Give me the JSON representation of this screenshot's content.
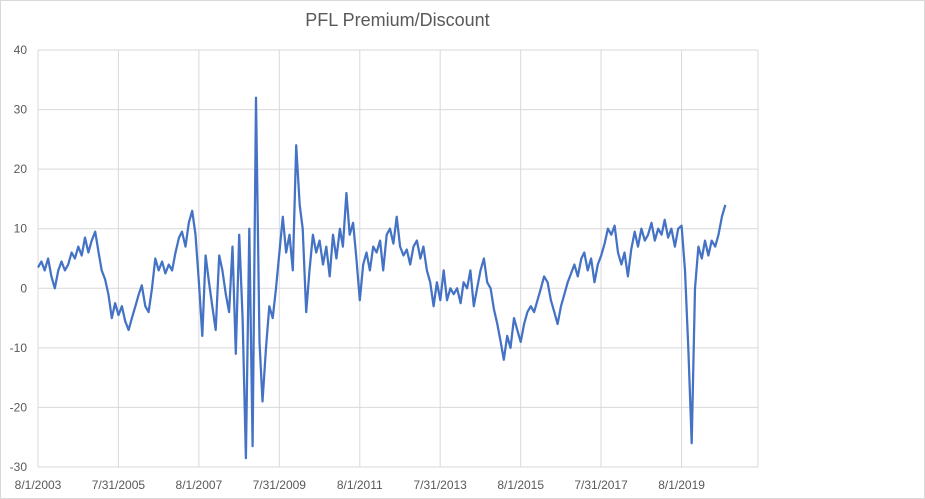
{
  "chart_data": {
    "type": "line",
    "title": "PFL Premium/Discount",
    "xlabel": "",
    "ylabel": "",
    "ylim": [
      -30,
      40
    ],
    "y_ticks": [
      40,
      30,
      20,
      10,
      0,
      -10,
      -20,
      -30
    ],
    "x_ticks": [
      "8/1/2003",
      "7/31/2005",
      "8/1/2007",
      "7/31/2009",
      "8/1/2011",
      "7/31/2013",
      "8/1/2015",
      "7/31/2017",
      "8/1/2019"
    ],
    "grid": true,
    "legend": "none",
    "series": [
      {
        "color": "#4472c4",
        "points": [
          [
            "2003-08-01",
            3.5
          ],
          [
            "2003-09-01",
            4.5
          ],
          [
            "2003-10-01",
            3.0
          ],
          [
            "2003-11-01",
            5.0
          ],
          [
            "2003-12-01",
            2.0
          ],
          [
            "2004-01-01",
            0.0
          ],
          [
            "2004-02-01",
            3.0
          ],
          [
            "2004-03-01",
            4.5
          ],
          [
            "2004-04-01",
            3.0
          ],
          [
            "2004-05-01",
            4.0
          ],
          [
            "2004-06-01",
            6.0
          ],
          [
            "2004-07-01",
            5.0
          ],
          [
            "2004-08-01",
            7.0
          ],
          [
            "2004-09-01",
            5.5
          ],
          [
            "2004-10-01",
            8.5
          ],
          [
            "2004-11-01",
            6.0
          ],
          [
            "2004-12-01",
            8.0
          ],
          [
            "2005-01-01",
            9.5
          ],
          [
            "2005-02-01",
            6.0
          ],
          [
            "2005-03-01",
            3.0
          ],
          [
            "2005-04-01",
            1.5
          ],
          [
            "2005-05-01",
            -1.0
          ],
          [
            "2005-06-01",
            -5.0
          ],
          [
            "2005-07-01",
            -2.5
          ],
          [
            "2005-08-01",
            -4.5
          ],
          [
            "2005-09-01",
            -3.0
          ],
          [
            "2005-10-01",
            -5.5
          ],
          [
            "2005-11-01",
            -7.0
          ],
          [
            "2005-12-01",
            -5.0
          ],
          [
            "2006-01-01",
            -3.0
          ],
          [
            "2006-02-01",
            -1.0
          ],
          [
            "2006-03-01",
            0.5
          ],
          [
            "2006-04-01",
            -3.0
          ],
          [
            "2006-05-01",
            -4.0
          ],
          [
            "2006-06-01",
            0.0
          ],
          [
            "2006-07-01",
            5.0
          ],
          [
            "2006-08-01",
            3.0
          ],
          [
            "2006-09-01",
            4.5
          ],
          [
            "2006-10-01",
            2.5
          ],
          [
            "2006-11-01",
            4.0
          ],
          [
            "2006-12-01",
            3.0
          ],
          [
            "2007-01-01",
            6.0
          ],
          [
            "2007-02-01",
            8.5
          ],
          [
            "2007-03-01",
            9.5
          ],
          [
            "2007-04-01",
            7.0
          ],
          [
            "2007-05-01",
            11.0
          ],
          [
            "2007-06-01",
            13.0
          ],
          [
            "2007-07-01",
            9.0
          ],
          [
            "2007-08-01",
            1.0
          ],
          [
            "2007-09-01",
            -8.0
          ],
          [
            "2007-10-01",
            5.5
          ],
          [
            "2007-11-01",
            1.0
          ],
          [
            "2007-12-01",
            -3.0
          ],
          [
            "2008-01-01",
            -7.0
          ],
          [
            "2008-02-01",
            5.5
          ],
          [
            "2008-03-01",
            3.0
          ],
          [
            "2008-04-01",
            -1.0
          ],
          [
            "2008-05-01",
            -4.0
          ],
          [
            "2008-06-01",
            7.0
          ],
          [
            "2008-07-01",
            -11.0
          ],
          [
            "2008-08-01",
            9.0
          ],
          [
            "2008-09-01",
            -5.0
          ],
          [
            "2008-10-01",
            -28.5
          ],
          [
            "2008-11-01",
            10.0
          ],
          [
            "2008-12-01",
            -26.5
          ],
          [
            "2009-01-01",
            32.0
          ],
          [
            "2009-02-01",
            -9.0
          ],
          [
            "2009-03-01",
            -19.0
          ],
          [
            "2009-04-01",
            -10.0
          ],
          [
            "2009-05-01",
            -3.0
          ],
          [
            "2009-06-01",
            -5.0
          ],
          [
            "2009-07-01",
            0.0
          ],
          [
            "2009-08-01",
            6.0
          ],
          [
            "2009-09-01",
            12.0
          ],
          [
            "2009-10-01",
            6.0
          ],
          [
            "2009-11-01",
            9.0
          ],
          [
            "2009-12-01",
            3.0
          ],
          [
            "2010-01-01",
            24.0
          ],
          [
            "2010-02-01",
            14.0
          ],
          [
            "2010-03-01",
            10.0
          ],
          [
            "2010-04-01",
            -4.0
          ],
          [
            "2010-05-01",
            3.0
          ],
          [
            "2010-06-01",
            9.0
          ],
          [
            "2010-07-01",
            6.0
          ],
          [
            "2010-08-01",
            8.0
          ],
          [
            "2010-09-01",
            4.0
          ],
          [
            "2010-10-01",
            7.0
          ],
          [
            "2010-11-01",
            2.0
          ],
          [
            "2010-12-01",
            9.0
          ],
          [
            "2011-01-01",
            5.0
          ],
          [
            "2011-02-01",
            10.0
          ],
          [
            "2011-03-01",
            7.0
          ],
          [
            "2011-04-01",
            16.0
          ],
          [
            "2011-05-01",
            9.0
          ],
          [
            "2011-06-01",
            11.0
          ],
          [
            "2011-07-01",
            5.0
          ],
          [
            "2011-08-01",
            -2.0
          ],
          [
            "2011-09-01",
            4.0
          ],
          [
            "2011-10-01",
            6.0
          ],
          [
            "2011-11-01",
            3.0
          ],
          [
            "2011-12-01",
            7.0
          ],
          [
            "2012-01-01",
            6.0
          ],
          [
            "2012-02-01",
            8.0
          ],
          [
            "2012-03-01",
            3.0
          ],
          [
            "2012-04-01",
            9.0
          ],
          [
            "2012-05-01",
            10.0
          ],
          [
            "2012-06-01",
            7.5
          ],
          [
            "2012-07-01",
            12.0
          ],
          [
            "2012-08-01",
            7.0
          ],
          [
            "2012-09-01",
            5.5
          ],
          [
            "2012-10-01",
            6.5
          ],
          [
            "2012-11-01",
            4.0
          ],
          [
            "2012-12-01",
            7.0
          ],
          [
            "2013-01-01",
            8.0
          ],
          [
            "2013-02-01",
            5.0
          ],
          [
            "2013-03-01",
            7.0
          ],
          [
            "2013-04-01",
            3.0
          ],
          [
            "2013-05-01",
            1.0
          ],
          [
            "2013-06-01",
            -3.0
          ],
          [
            "2013-07-01",
            1.0
          ],
          [
            "2013-08-01",
            -2.0
          ],
          [
            "2013-09-01",
            3.0
          ],
          [
            "2013-10-01",
            -2.0
          ],
          [
            "2013-11-01",
            0.0
          ],
          [
            "2013-12-01",
            -1.0
          ],
          [
            "2014-01-01",
            0.0
          ],
          [
            "2014-02-01",
            -2.5
          ],
          [
            "2014-03-01",
            1.0
          ],
          [
            "2014-04-01",
            0.0
          ],
          [
            "2014-05-01",
            3.0
          ],
          [
            "2014-06-01",
            -3.0
          ],
          [
            "2014-07-01",
            0.0
          ],
          [
            "2014-08-01",
            3.0
          ],
          [
            "2014-09-01",
            5.0
          ],
          [
            "2014-10-01",
            1.0
          ],
          [
            "2014-11-01",
            0.0
          ],
          [
            "2014-12-01",
            -3.5
          ],
          [
            "2015-01-01",
            -6.0
          ],
          [
            "2015-02-01",
            -9.0
          ],
          [
            "2015-03-01",
            -12.0
          ],
          [
            "2015-04-01",
            -8.0
          ],
          [
            "2015-05-01",
            -10.0
          ],
          [
            "2015-06-01",
            -5.0
          ],
          [
            "2015-07-01",
            -7.0
          ],
          [
            "2015-08-01",
            -9.0
          ],
          [
            "2015-09-01",
            -6.0
          ],
          [
            "2015-10-01",
            -4.0
          ],
          [
            "2015-11-01",
            -3.0
          ],
          [
            "2015-12-01",
            -4.0
          ],
          [
            "2016-01-01",
            -2.0
          ],
          [
            "2016-02-01",
            0.0
          ],
          [
            "2016-03-01",
            2.0
          ],
          [
            "2016-04-01",
            1.0
          ],
          [
            "2016-05-01",
            -2.0
          ],
          [
            "2016-06-01",
            -4.0
          ],
          [
            "2016-07-01",
            -6.0
          ],
          [
            "2016-08-01",
            -3.0
          ],
          [
            "2016-09-01",
            -1.0
          ],
          [
            "2016-10-01",
            1.0
          ],
          [
            "2016-11-01",
            2.5
          ],
          [
            "2016-12-01",
            4.0
          ],
          [
            "2017-01-01",
            2.0
          ],
          [
            "2017-02-01",
            5.0
          ],
          [
            "2017-03-01",
            6.0
          ],
          [
            "2017-04-01",
            3.0
          ],
          [
            "2017-05-01",
            5.0
          ],
          [
            "2017-06-01",
            1.0
          ],
          [
            "2017-07-01",
            4.0
          ],
          [
            "2017-08-01",
            5.5
          ],
          [
            "2017-09-01",
            7.5
          ],
          [
            "2017-10-01",
            10.0
          ],
          [
            "2017-11-01",
            9.0
          ],
          [
            "2017-12-01",
            10.5
          ],
          [
            "2018-01-01",
            6.0
          ],
          [
            "2018-02-01",
            4.0
          ],
          [
            "2018-03-01",
            6.0
          ],
          [
            "2018-04-01",
            2.0
          ],
          [
            "2018-05-01",
            6.5
          ],
          [
            "2018-06-01",
            9.5
          ],
          [
            "2018-07-01",
            7.0
          ],
          [
            "2018-08-01",
            10.0
          ],
          [
            "2018-09-01",
            8.0
          ],
          [
            "2018-10-01",
            9.0
          ],
          [
            "2018-11-01",
            11.0
          ],
          [
            "2018-12-01",
            8.0
          ],
          [
            "2019-01-01",
            10.0
          ],
          [
            "2019-02-01",
            9.0
          ],
          [
            "2019-03-01",
            11.5
          ],
          [
            "2019-04-01",
            8.5
          ],
          [
            "2019-05-01",
            10.0
          ],
          [
            "2019-06-01",
            7.0
          ],
          [
            "2019-07-01",
            10.0
          ],
          [
            "2019-08-01",
            10.5
          ],
          [
            "2019-09-01",
            3.0
          ],
          [
            "2019-10-01",
            -10.0
          ],
          [
            "2019-11-01",
            -26.0
          ],
          [
            "2019-12-01",
            0.0
          ],
          [
            "2020-01-01",
            7.0
          ],
          [
            "2020-02-01",
            5.0
          ],
          [
            "2020-03-01",
            8.0
          ],
          [
            "2020-04-01",
            5.5
          ],
          [
            "2020-05-01",
            8.0
          ],
          [
            "2020-06-01",
            7.0
          ],
          [
            "2020-07-01",
            9.0
          ],
          [
            "2020-08-01",
            12.0
          ],
          [
            "2020-09-01",
            14.0
          ]
        ]
      }
    ]
  }
}
